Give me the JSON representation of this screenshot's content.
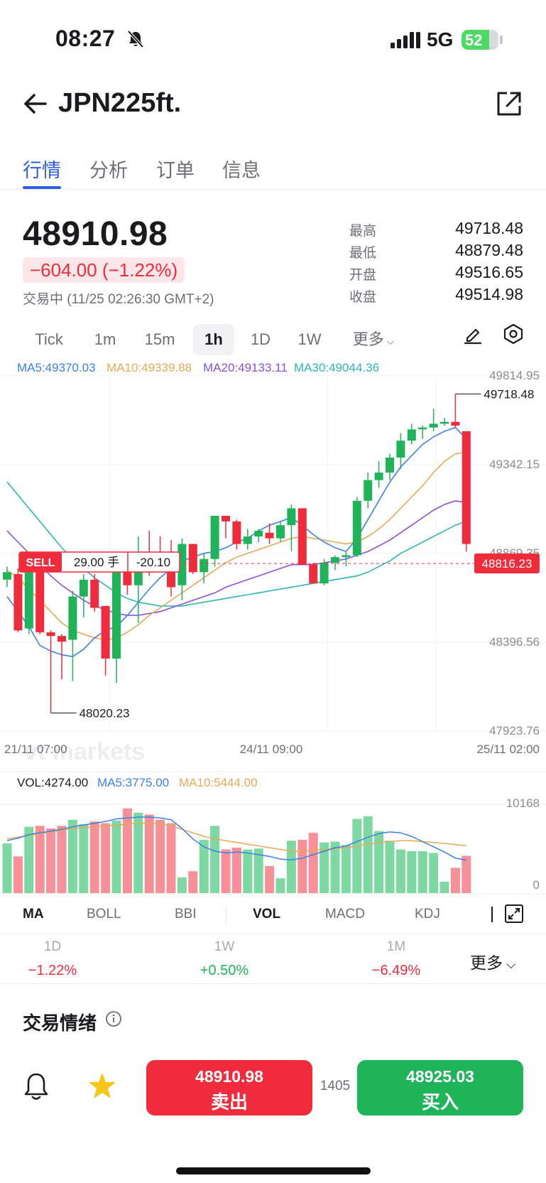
{
  "status_bar": {
    "time": "08:27",
    "network": "5G",
    "battery": "52"
  },
  "header": {
    "title": "JPN225ft."
  },
  "tabs": [
    {
      "label": "行情",
      "active": true
    },
    {
      "label": "分析",
      "active": false
    },
    {
      "label": "订单",
      "active": false
    },
    {
      "label": "信息",
      "active": false
    }
  ],
  "quote": {
    "price": "48910.98",
    "change": "−604.00 (−1.22%)",
    "trading_status": "交易中 (11/25 02:26:30 GMT+2)",
    "stats": [
      {
        "label": "最高",
        "value": "49718.48"
      },
      {
        "label": "最低",
        "value": "48879.48"
      },
      {
        "label": "开盘",
        "value": "49516.65"
      },
      {
        "label": "收盘",
        "value": "49514.98"
      }
    ]
  },
  "timeframes": [
    {
      "label": "Tick",
      "active": false
    },
    {
      "label": "1m",
      "active": false
    },
    {
      "label": "15m",
      "active": false
    },
    {
      "label": "1h",
      "active": true
    },
    {
      "label": "1D",
      "active": false
    },
    {
      "label": "1W",
      "active": false
    },
    {
      "label": "更多",
      "active": false
    }
  ],
  "chart": {
    "ma_legend": {
      "ma5": "MA5:49370.03",
      "ma10": "MA10:49339.88",
      "ma20": "MA20:49133.11",
      "ma30": "MA30:49044.36"
    },
    "y_ticks": [
      "49814.95",
      "49342.15",
      "48869.35",
      "48396.56",
      "47923.76"
    ],
    "x_ticks": [
      "21/11 07:00",
      "24/11 09:00",
      "25/11 02:00"
    ],
    "high_label": "49718.48",
    "low_label": "48020.23",
    "current_price_tag": "48816.23",
    "position": {
      "side": "SELL",
      "size": "29.00 手",
      "pnl": "-20.10"
    },
    "watermark": "vt markets",
    "colors": {
      "up": "#1fb35a",
      "down": "#f02c3c",
      "ma5": "#3b82e6",
      "ma10": "#e6a957",
      "ma20": "#8e4fd6",
      "ma30": "#2db5b5"
    }
  },
  "chart_data": {
    "type": "candlestick",
    "ylim": [
      47923.76,
      49814.95
    ],
    "candles": [
      {
        "o": 48730,
        "h": 48800,
        "l": 48690,
        "c": 48770
      },
      {
        "o": 48760,
        "h": 48790,
        "l": 48450,
        "c": 48460
      },
      {
        "o": 48470,
        "h": 48790,
        "l": 48440,
        "c": 48780
      },
      {
        "o": 48770,
        "h": 48790,
        "l": 48440,
        "c": 48450
      },
      {
        "o": 48450,
        "h": 48460,
        "l": 48020.23,
        "c": 48430
      },
      {
        "o": 48430,
        "h": 48440,
        "l": 48200,
        "c": 48400
      },
      {
        "o": 48410,
        "h": 48670,
        "l": 48190,
        "c": 48640
      },
      {
        "o": 48640,
        "h": 48760,
        "l": 48530,
        "c": 48730
      },
      {
        "o": 48730,
        "h": 48760,
        "l": 48560,
        "c": 48580
      },
      {
        "o": 48590,
        "h": 48590,
        "l": 48220,
        "c": 48310
      },
      {
        "o": 48310,
        "h": 48770,
        "l": 48180,
        "c": 48770
      },
      {
        "o": 48770,
        "h": 48800,
        "l": 48650,
        "c": 48700
      },
      {
        "o": 48700,
        "h": 48960,
        "l": 48500,
        "c": 48860
      },
      {
        "o": 48860,
        "h": 48990,
        "l": 48750,
        "c": 48840
      },
      {
        "o": 48850,
        "h": 48960,
        "l": 48780,
        "c": 48840
      },
      {
        "o": 48850,
        "h": 48940,
        "l": 48640,
        "c": 48690
      },
      {
        "o": 48700,
        "h": 48950,
        "l": 48620,
        "c": 48920
      },
      {
        "o": 48920,
        "h": 48920,
        "l": 48760,
        "c": 48770
      },
      {
        "o": 48770,
        "h": 48870,
        "l": 48710,
        "c": 48840
      },
      {
        "o": 48840,
        "h": 49070,
        "l": 48800,
        "c": 49070
      },
      {
        "o": 49070,
        "h": 49070,
        "l": 48950,
        "c": 49040
      },
      {
        "o": 49040,
        "h": 49050,
        "l": 48890,
        "c": 48920
      },
      {
        "o": 48920,
        "h": 49000,
        "l": 48890,
        "c": 48960
      },
      {
        "o": 48960,
        "h": 49000,
        "l": 48930,
        "c": 48990
      },
      {
        "o": 48980,
        "h": 49030,
        "l": 48920,
        "c": 48950
      },
      {
        "o": 48950,
        "h": 49040,
        "l": 48930,
        "c": 49020
      },
      {
        "o": 49020,
        "h": 49130,
        "l": 48880,
        "c": 49110
      },
      {
        "o": 49110,
        "h": 49110,
        "l": 48810,
        "c": 48810
      },
      {
        "o": 48810,
        "h": 48820,
        "l": 48720,
        "c": 48710
      },
      {
        "o": 48710,
        "h": 48840,
        "l": 48700,
        "c": 48820
      },
      {
        "o": 48820,
        "h": 48860,
        "l": 48780,
        "c": 48850
      },
      {
        "o": 48850,
        "h": 48880,
        "l": 48800,
        "c": 48860
      },
      {
        "o": 48860,
        "h": 49170,
        "l": 48850,
        "c": 49150
      },
      {
        "o": 49150,
        "h": 49300,
        "l": 49110,
        "c": 49260
      },
      {
        "o": 49260,
        "h": 49360,
        "l": 49220,
        "c": 49300
      },
      {
        "o": 49300,
        "h": 49400,
        "l": 49260,
        "c": 49380
      },
      {
        "o": 49380,
        "h": 49510,
        "l": 49320,
        "c": 49470
      },
      {
        "o": 49470,
        "h": 49560,
        "l": 49450,
        "c": 49530
      },
      {
        "o": 49530,
        "h": 49550,
        "l": 49480,
        "c": 49540
      },
      {
        "o": 49540,
        "h": 49640,
        "l": 49520,
        "c": 49560
      },
      {
        "o": 49560,
        "h": 49590,
        "l": 49550,
        "c": 49570
      },
      {
        "o": 49570,
        "h": 49718.48,
        "l": 49540,
        "c": 49550
      },
      {
        "o": 49520,
        "h": 49520,
        "l": 48879.48,
        "c": 48920
      }
    ],
    "ma": {
      "ma5": [
        48640,
        48560,
        48480,
        48380,
        48350,
        48330,
        48320,
        48360,
        48420,
        48460,
        48480,
        48540,
        48610,
        48680,
        48740,
        48790,
        48830,
        48850,
        48870,
        48880,
        48900,
        48930,
        48950,
        48990,
        49020,
        49040,
        49060,
        49020,
        48970,
        48930,
        48900,
        48880,
        48950,
        49050,
        49150,
        49250,
        49330,
        49390,
        49450,
        49490,
        49520,
        49540,
        49480
      ],
      "ma10": [
        48780,
        48740,
        48680,
        48620,
        48560,
        48500,
        48460,
        48440,
        48420,
        48410,
        48420,
        48450,
        48490,
        48540,
        48580,
        48620,
        48660,
        48700,
        48740,
        48780,
        48820,
        48850,
        48870,
        48890,
        48910,
        48930,
        48950,
        48960,
        48950,
        48940,
        48930,
        48920,
        48930,
        48960,
        49000,
        49050,
        49110,
        49170,
        49230,
        49300,
        49360,
        49400,
        49410
      ],
      "ma20": [
        48990,
        48930,
        48870,
        48810,
        48750,
        48700,
        48660,
        48620,
        48590,
        48570,
        48550,
        48540,
        48540,
        48550,
        48560,
        48580,
        48600,
        48620,
        48640,
        48660,
        48690,
        48710,
        48730,
        48750,
        48770,
        48790,
        48810,
        48810,
        48810,
        48820,
        48830,
        48840,
        48860,
        48880,
        48910,
        48940,
        48980,
        49020,
        49060,
        49100,
        49130,
        49150,
        49140
      ],
      "ma30": [
        49250,
        49180,
        49110,
        49040,
        48970,
        48900,
        48840,
        48790,
        48740,
        48700,
        48660,
        48630,
        48610,
        48600,
        48590,
        48590,
        48590,
        48600,
        48610,
        48620,
        48630,
        48640,
        48650,
        48660,
        48670,
        48680,
        48690,
        48700,
        48710,
        48720,
        48730,
        48740,
        48750,
        48770,
        48800,
        48830,
        48870,
        48900,
        48930,
        48960,
        48990,
        49020,
        49040
      ]
    },
    "volume": {
      "legend": "VOL:4274.00",
      "ma5_legend": "MA5:3775.00",
      "ma10_legend": "MA10:5444.00",
      "ylim": [
        0,
        10168
      ],
      "y_ticks": [
        "10168",
        "0"
      ],
      "bars": [
        5700,
        4200,
        7600,
        7700,
        7400,
        7700,
        8400,
        7900,
        8200,
        8000,
        8300,
        9700,
        9200,
        9000,
        8400,
        8000,
        1800,
        2500,
        6100,
        7700,
        5000,
        5200,
        5000,
        5100,
        3100,
        1700,
        6000,
        6100,
        6900,
        5800,
        5900,
        5500,
        8500,
        8800,
        7100,
        6000,
        5000,
        4800,
        4800,
        4600,
        1300,
        2900,
        4274
      ],
      "ma5": [
        6000,
        6300,
        6700,
        6900,
        7100,
        7300,
        7600,
        7800,
        8000,
        8200,
        8500,
        8600,
        8700,
        8700,
        8600,
        8400,
        7400,
        6200,
        5300,
        4800,
        4600,
        4700,
        4600,
        4400,
        4200,
        3900,
        3800,
        4000,
        4400,
        4800,
        5200,
        5400,
        5900,
        6400,
        6800,
        7000,
        6900,
        6500,
        5900,
        5300,
        4700,
        4000,
        3775
      ],
      "ma10": [
        6200,
        6400,
        6600,
        6800,
        7000,
        7200,
        7400,
        7500,
        7600,
        7700,
        7800,
        7900,
        8000,
        8000,
        7900,
        7700,
        7300,
        6900,
        6500,
        6200,
        6000,
        5800,
        5600,
        5400,
        5200,
        5000,
        4800,
        4800,
        4900,
        5000,
        5100,
        5200,
        5400,
        5600,
        5800,
        5900,
        6000,
        6000,
        5900,
        5800,
        5700,
        5550,
        5444
      ]
    }
  },
  "indicators": [
    {
      "label": "MA",
      "bold": true
    },
    {
      "label": "BOLL",
      "bold": false
    },
    {
      "label": "BBI",
      "bold": false
    },
    {
      "label": "VOL",
      "bold": true
    },
    {
      "label": "MACD",
      "bold": false
    },
    {
      "label": "KDJ",
      "bold": false
    }
  ],
  "performance": [
    {
      "label": "1D",
      "value": "−1.22%",
      "color": "#f02c3c"
    },
    {
      "label": "1W",
      "value": "+0.50%",
      "color": "#1fb35a"
    },
    {
      "label": "1M",
      "value": "−6.49%",
      "color": "#f02c3c"
    }
  ],
  "more_label": "更多",
  "sentiment": {
    "title": "交易情绪"
  },
  "trade_bar": {
    "sell_price": "48910.98",
    "sell_label": "卖出",
    "spread": "1405",
    "buy_price": "48925.03",
    "buy_label": "买入"
  }
}
